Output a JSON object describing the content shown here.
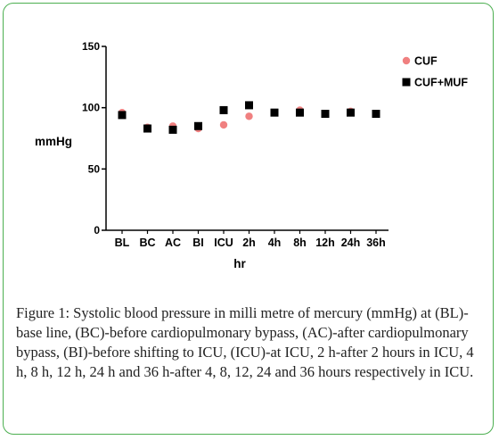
{
  "chart_data": {
    "type": "scatter",
    "categories": [
      "BL",
      "BC",
      "AC",
      "BI",
      "ICU",
      "2h",
      "4h",
      "8h",
      "12h",
      "24h",
      "36h"
    ],
    "series": [
      {
        "name": "CUF",
        "marker": "circle",
        "color": "#f08080",
        "values": [
          96,
          84,
          85,
          83,
          86,
          93,
          96,
          98,
          95,
          97,
          95
        ]
      },
      {
        "name": "CUF+MUF",
        "marker": "square",
        "color": "#000000",
        "values": [
          94,
          83,
          82,
          85,
          98,
          102,
          96,
          96,
          95,
          96,
          95
        ]
      }
    ],
    "xlabel": "hr",
    "ylabel": "mmHg",
    "ylim": [
      0,
      150
    ],
    "yticks": [
      0,
      50,
      100,
      150
    ],
    "legend": "top-right",
    "grid": false
  },
  "caption": {
    "label": "Figure 1:",
    "text": " Systolic blood pressure in milli metre of mercury (mmHg) at (BL)-base line, (BC)-before cardiopulmonary bypass, (AC)-after cardiopulmonary bypass, (BI)-before shifting to ICU, (ICU)-at ICU, 2 h-after 2 hours in ICU, 4 h, 8 h, 12 h, 24 h and 36 h-after 4, 8, 12, 24 and 36 hours respectively in ICU."
  },
  "colors": {
    "frame": "#4caf50",
    "cuf": "#f08080",
    "cufmuf": "#000000"
  }
}
